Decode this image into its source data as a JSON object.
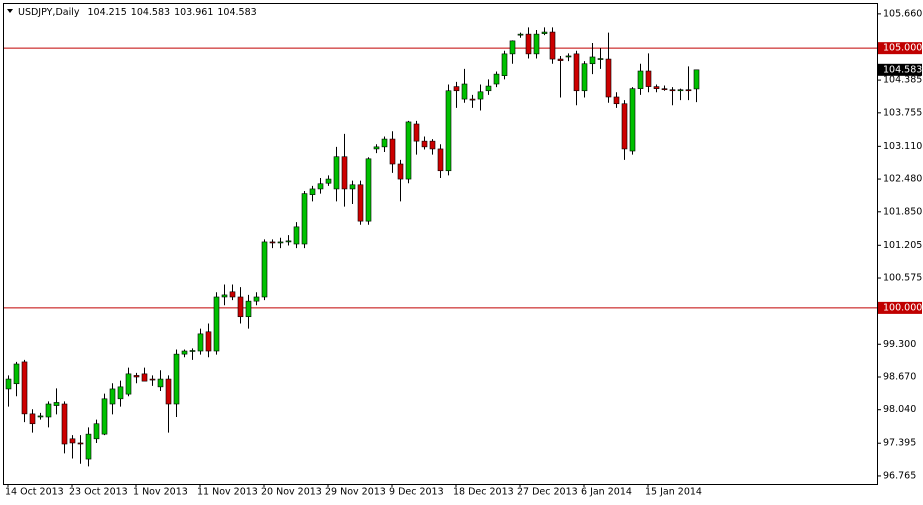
{
  "chart_data": {
    "type": "candlestick",
    "title": "USDJPY,Daily",
    "categories": [
      "14 Oct 2013",
      null,
      null,
      null,
      null,
      null,
      null,
      null,
      "23 Oct 2013",
      null,
      null,
      null,
      null,
      null,
      null,
      null,
      "1 Nov 2013",
      null,
      null,
      null,
      null,
      null,
      null,
      null,
      "11 Nov 2013",
      null,
      null,
      null,
      null,
      null,
      null,
      null,
      "20 Nov 2013",
      null,
      null,
      null,
      null,
      null,
      null,
      null,
      "29 Nov 2013",
      null,
      null,
      null,
      null,
      null,
      null,
      null,
      "9 Dec 2013",
      null,
      null,
      null,
      null,
      null,
      null,
      null,
      "18 Dec 2013",
      null,
      null,
      null,
      null,
      null,
      null,
      null,
      "27 Dec 2013",
      null,
      null,
      null,
      null,
      null,
      null,
      null,
      "6 Jan 2014",
      null,
      null,
      null,
      null,
      null,
      null,
      null,
      "15 Jan 2014",
      null,
      null,
      null,
      null,
      null,
      null
    ],
    "open": [
      98.44,
      98.54,
      98.96,
      97.96,
      97.9,
      97.9,
      98.12,
      98.15,
      97.48,
      97.4,
      97.09,
      97.48,
      97.57,
      98.15,
      98.25,
      98.34,
      98.7,
      98.73,
      98.63,
      98.48,
      98.63,
      98.15,
      99.11,
      99.17,
      99.17,
      99.54,
      99.17,
      100.21,
      100.31,
      100.21,
      99.83,
      100.13,
      100.21,
      101.27,
      101.25,
      101.27,
      101.23,
      101.23,
      102.18,
      102.29,
      102.4,
      102.29,
      102.91,
      102.29,
      102.37,
      101.67,
      103.06,
      103.1,
      103.25,
      102.77,
      102.48,
      103.54,
      103.21,
      103.21,
      103.06,
      102.64,
      104.26,
      104.02,
      104.02,
      104.02,
      104.18,
      104.31,
      104.47,
      104.89,
      105.25,
      105.27,
      104.89,
      105.28,
      105.31,
      104.79,
      104.83,
      104.89,
      104.18,
      104.7,
      104.79,
      104.79,
      104.06,
      103.93,
      103.02,
      104.22,
      104.56,
      104.26,
      104.22,
      104.2,
      104.18,
      104.2,
      104.215
    ],
    "high": [
      98.7,
      98.96,
      99.0,
      98.05,
      97.98,
      98.2,
      98.45,
      98.2,
      97.55,
      97.55,
      97.7,
      97.85,
      98.35,
      98.55,
      98.6,
      98.85,
      98.75,
      98.85,
      98.7,
      98.8,
      98.7,
      99.2,
      99.2,
      99.22,
      99.6,
      99.7,
      100.3,
      100.45,
      100.45,
      100.4,
      100.25,
      100.3,
      101.32,
      101.32,
      101.35,
      101.4,
      101.65,
      102.25,
      102.35,
      102.5,
      102.55,
      103.1,
      103.35,
      102.45,
      102.45,
      102.9,
      103.15,
      103.3,
      103.4,
      102.85,
      103.6,
      103.6,
      103.3,
      103.25,
      103.15,
      104.3,
      104.35,
      104.6,
      104.1,
      104.3,
      104.4,
      104.55,
      104.95,
      105.15,
      105.3,
      105.4,
      105.35,
      105.4,
      105.4,
      104.85,
      104.9,
      104.95,
      104.75,
      105.1,
      105.0,
      105.3,
      104.15,
      104.0,
      104.25,
      104.7,
      104.9,
      104.3,
      104.28,
      104.25,
      104.22,
      104.65,
      104.583
    ],
    "low": [
      98.1,
      98.3,
      97.8,
      97.6,
      97.85,
      97.7,
      97.95,
      97.2,
      97.1,
      97.0,
      96.95,
      97.4,
      97.55,
      97.95,
      98.1,
      98.3,
      98.55,
      98.6,
      98.5,
      98.4,
      97.6,
      97.9,
      99.05,
      99.0,
      99.1,
      99.05,
      99.1,
      100.05,
      100.15,
      99.7,
      99.6,
      100.05,
      100.15,
      101.15,
      101.15,
      101.2,
      101.15,
      101.15,
      102.05,
      102.2,
      102.35,
      102.05,
      101.95,
      102.0,
      101.6,
      101.6,
      102.98,
      103.0,
      102.6,
      102.05,
      102.4,
      102.95,
      103.05,
      102.95,
      102.5,
      102.55,
      103.85,
      103.95,
      103.85,
      103.8,
      104.1,
      104.25,
      104.4,
      104.7,
      105.2,
      104.8,
      104.8,
      105.25,
      104.7,
      104.05,
      104.75,
      103.9,
      104.05,
      104.5,
      104.6,
      103.95,
      103.85,
      102.85,
      102.95,
      104.1,
      104.15,
      104.15,
      104.18,
      103.9,
      104.0,
      104.0,
      103.961
    ],
    "close": [
      98.63,
      98.92,
      97.96,
      97.77,
      97.92,
      98.15,
      98.18,
      97.38,
      97.4,
      97.38,
      97.57,
      97.77,
      98.25,
      98.44,
      98.48,
      98.73,
      98.67,
      98.59,
      98.62,
      98.63,
      98.15,
      99.11,
      99.17,
      99.18,
      99.5,
      99.17,
      100.21,
      100.25,
      100.21,
      99.83,
      100.13,
      100.21,
      101.27,
      101.25,
      101.27,
      101.29,
      101.56,
      102.2,
      102.29,
      102.39,
      102.48,
      102.91,
      102.29,
      102.37,
      101.67,
      102.87,
      103.1,
      103.25,
      102.77,
      102.48,
      103.58,
      103.21,
      103.1,
      103.06,
      102.64,
      104.18,
      104.18,
      104.31,
      104.0,
      104.16,
      104.27,
      104.5,
      104.89,
      105.14,
      105.27,
      104.89,
      105.27,
      105.31,
      104.79,
      104.76,
      104.85,
      104.18,
      104.7,
      104.83,
      104.8,
      104.06,
      103.93,
      103.06,
      104.22,
      104.56,
      104.26,
      104.22,
      104.2,
      104.18,
      104.2,
      104.18,
      104.583
    ],
    "up_color": "#00c000",
    "down_color": "#cc0000",
    "hlines": [
      {
        "value": 105,
        "label": "105.000"
      },
      {
        "value": 100,
        "label": "100.000"
      }
    ],
    "hline_color": "#c00000",
    "ylim": [
      96.61,
      105.85
    ],
    "yticks": [
      {
        "value": 105.66,
        "label": "105.660"
      },
      104.385,
      {
        "value": 103.755,
        "label": "103.755"
      },
      {
        "value": 103.11,
        "label": "103.110"
      },
      {
        "value": 102.48,
        "label": "102.480"
      },
      {
        "value": 101.85,
        "label": "101.850"
      },
      101.205,
      100.575,
      {
        "value": 99.3,
        "label": "99.300"
      },
      {
        "value": 98.67,
        "label": "98.670"
      },
      {
        "value": 98.04,
        "label": "98.040"
      },
      97.395,
      96.765
    ]
  }
}
